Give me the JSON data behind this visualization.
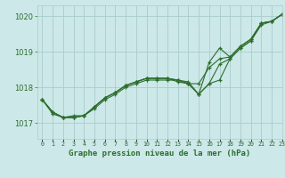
{
  "title": "Graphe pression niveau de la mer (hPa)",
  "bg_color": "#cce8e8",
  "grid_color": "#aacccc",
  "line_color": "#2d6e2d",
  "xlim": [
    -0.5,
    23
  ],
  "ylim": [
    1016.55,
    1020.3
  ],
  "yticks": [
    1017,
    1018,
    1019,
    1020
  ],
  "xtick_labels": [
    "0",
    "1",
    "2",
    "3",
    "4",
    "5",
    "6",
    "7",
    "8",
    "9",
    "10",
    "11",
    "12",
    "13",
    "14",
    "15",
    "16",
    "17",
    "18",
    "19",
    "20",
    "21",
    "22",
    "23"
  ],
  "series": [
    [
      1017.65,
      1017.3,
      1017.15,
      1017.2,
      1017.2,
      1017.45,
      1017.7,
      1017.85,
      1018.05,
      1018.15,
      1018.25,
      1018.25,
      1018.25,
      1018.2,
      1018.15,
      1017.8,
      1018.1,
      1018.65,
      1018.8,
      1019.1,
      1019.3,
      1019.8,
      1019.85,
      1020.05
    ],
    [
      1017.65,
      1017.25,
      1017.15,
      1017.15,
      1017.2,
      1017.4,
      1017.65,
      1017.8,
      1018.0,
      1018.1,
      1018.2,
      1018.2,
      1018.2,
      1018.2,
      1018.1,
      1017.8,
      1018.1,
      1018.2,
      1018.8,
      1019.1,
      1019.3,
      1019.75,
      1019.85,
      1020.05
    ],
    [
      1017.65,
      1017.3,
      1017.15,
      1017.15,
      1017.2,
      1017.45,
      1017.7,
      1017.85,
      1018.05,
      1018.15,
      1018.25,
      1018.25,
      1018.25,
      1018.15,
      1018.1,
      1018.1,
      1018.55,
      1018.8,
      1018.85,
      1019.15,
      1019.35,
      1019.8,
      1019.85,
      1020.05
    ],
    [
      1017.65,
      1017.3,
      1017.15,
      1017.15,
      1017.2,
      1017.45,
      1017.7,
      1017.85,
      1018.05,
      1018.15,
      1018.25,
      1018.25,
      1018.25,
      1018.2,
      1018.1,
      1017.8,
      1018.7,
      1019.1,
      1018.85,
      1019.15,
      1019.35,
      1019.8,
      1019.85,
      1020.05
    ]
  ]
}
